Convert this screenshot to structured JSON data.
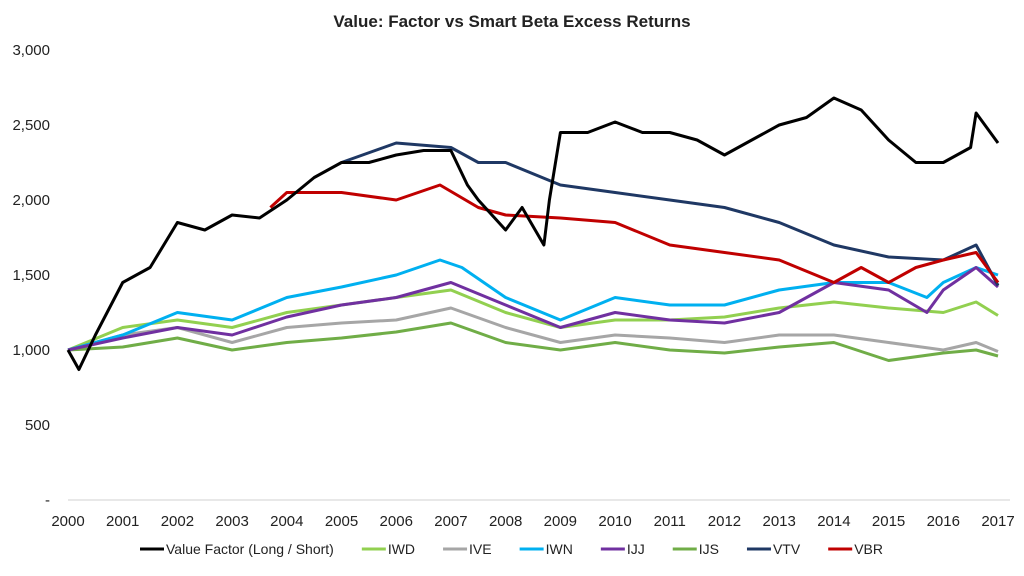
{
  "chart_data": {
    "type": "line",
    "title": "Value: Factor vs Smart Beta Excess Returns",
    "xlabel": "",
    "ylabel": "",
    "xlim": [
      2000,
      2017
    ],
    "ylim": [
      0,
      3000
    ],
    "grid": false,
    "legend_position": "bottom",
    "x_ticks": [
      "2000",
      "2001",
      "2002",
      "2003",
      "2004",
      "2005",
      "2006",
      "2007",
      "2008",
      "2009",
      "2010",
      "2011",
      "2012",
      "2013",
      "2014",
      "2015",
      "2016",
      "2017"
    ],
    "y_ticks": [
      {
        "value": 0,
        "label": "-"
      },
      {
        "value": 500,
        "label": "500"
      },
      {
        "value": 1000,
        "label": "1,000"
      },
      {
        "value": 1500,
        "label": "1,500"
      },
      {
        "value": 2000,
        "label": "2,000"
      },
      {
        "value": 2500,
        "label": "2,500"
      },
      {
        "value": 3000,
        "label": "3,000"
      }
    ],
    "series": [
      {
        "name": "IJS",
        "color": "#70ad47",
        "x": [
          2000,
          2001,
          2002,
          2003,
          2004,
          2005,
          2006,
          2007,
          2008,
          2009,
          2010,
          2011,
          2012,
          2013,
          2014,
          2015,
          2016,
          2016.6,
          2017
        ],
        "y": [
          1000,
          1020,
          1080,
          1000,
          1050,
          1080,
          1120,
          1180,
          1050,
          1000,
          1050,
          1000,
          980,
          1020,
          1050,
          930,
          980,
          1000,
          960
        ]
      },
      {
        "name": "IVE",
        "color": "#a6a6a6",
        "x": [
          2000,
          2001,
          2002,
          2003,
          2004,
          2005,
          2006,
          2007,
          2008,
          2009,
          2010,
          2011,
          2012,
          2013,
          2014,
          2015,
          2016,
          2016.6,
          2017
        ],
        "y": [
          1000,
          1100,
          1150,
          1050,
          1150,
          1180,
          1200,
          1280,
          1150,
          1050,
          1100,
          1080,
          1050,
          1100,
          1100,
          1050,
          1000,
          1050,
          990
        ]
      },
      {
        "name": "IWD",
        "color": "#92d050",
        "x": [
          2000,
          2001,
          2002,
          2003,
          2004,
          2005,
          2006,
          2007,
          2008,
          2009,
          2010,
          2011,
          2012,
          2013,
          2014,
          2015,
          2016,
          2016.6,
          2017
        ],
        "y": [
          1000,
          1150,
          1200,
          1150,
          1250,
          1300,
          1350,
          1400,
          1250,
          1150,
          1200,
          1200,
          1220,
          1280,
          1320,
          1280,
          1250,
          1320,
          1230
        ]
      },
      {
        "name": "IWN",
        "color": "#00b0f0",
        "x": [
          2000,
          2001,
          2002,
          2003,
          2004,
          2005,
          2006,
          2006.8,
          2007.2,
          2008,
          2009,
          2010,
          2011,
          2012,
          2013,
          2014,
          2015,
          2015.7,
          2016,
          2016.6,
          2017
        ],
        "y": [
          1000,
          1100,
          1250,
          1200,
          1350,
          1420,
          1500,
          1600,
          1550,
          1350,
          1200,
          1350,
          1300,
          1300,
          1400,
          1450,
          1450,
          1350,
          1450,
          1550,
          1500
        ]
      },
      {
        "name": "IJJ",
        "color": "#7030a0",
        "x": [
          2000,
          2001,
          2002,
          2003,
          2004,
          2005,
          2006,
          2007,
          2008,
          2009,
          2010,
          2011,
          2012,
          2013,
          2014,
          2015,
          2015.7,
          2016,
          2016.6,
          2017
        ],
        "y": [
          1000,
          1080,
          1150,
          1100,
          1220,
          1300,
          1350,
          1450,
          1300,
          1150,
          1250,
          1200,
          1180,
          1250,
          1450,
          1400,
          1250,
          1400,
          1550,
          1420
        ]
      },
      {
        "name": "VTV",
        "color": "#1f3864",
        "x": [
          2005,
          2006,
          2007,
          2007.5,
          2008,
          2009,
          2010,
          2011,
          2012,
          2013,
          2014,
          2015,
          2016,
          2016.6,
          2017
        ],
        "y": [
          2250,
          2380,
          2350,
          2250,
          2250,
          2100,
          2050,
          2000,
          1950,
          1850,
          1700,
          1620,
          1600,
          1700,
          1430
        ]
      },
      {
        "name": "VBR",
        "color": "#c00000",
        "x": [
          2003.7,
          2004,
          2005,
          2006,
          2006.8,
          2007.5,
          2008,
          2009,
          2010,
          2011,
          2012,
          2013,
          2014,
          2014.5,
          2015,
          2015.5,
          2016,
          2016.6,
          2017
        ],
        "y": [
          1950,
          2050,
          2050,
          2000,
          2100,
          1950,
          1900,
          1880,
          1850,
          1700,
          1650,
          1600,
          1450,
          1550,
          1450,
          1550,
          1600,
          1650,
          1450
        ]
      },
      {
        "name": "Value Factor (Long / Short)",
        "color": "#000000",
        "x": [
          2000,
          2000.2,
          2000.5,
          2001,
          2001.5,
          2002,
          2002.5,
          2003,
          2003.5,
          2004,
          2004.5,
          2005,
          2005.5,
          2006,
          2006.5,
          2007,
          2007.3,
          2007.5,
          2008,
          2008.3,
          2008.7,
          2008.8,
          2009,
          2009.5,
          2010,
          2010.5,
          2011,
          2011.5,
          2012,
          2012.5,
          2013,
          2013.5,
          2014,
          2014.5,
          2015,
          2015.5,
          2016,
          2016.5,
          2016.6,
          2017
        ],
        "y": [
          1000,
          870,
          1100,
          1450,
          1550,
          1850,
          1800,
          1900,
          1880,
          2000,
          2150,
          2250,
          2250,
          2300,
          2330,
          2330,
          2100,
          2000,
          1800,
          1950,
          1700,
          2000,
          2450,
          2450,
          2520,
          2450,
          2450,
          2400,
          2300,
          2400,
          2500,
          2550,
          2680,
          2600,
          2400,
          2250,
          2250,
          2350,
          2580,
          2380
        ]
      }
    ],
    "legend_order": [
      "Value Factor (Long / Short)",
      "IWD",
      "IVE",
      "IWN",
      "IJJ",
      "IJS",
      "VTV",
      "VBR"
    ]
  }
}
